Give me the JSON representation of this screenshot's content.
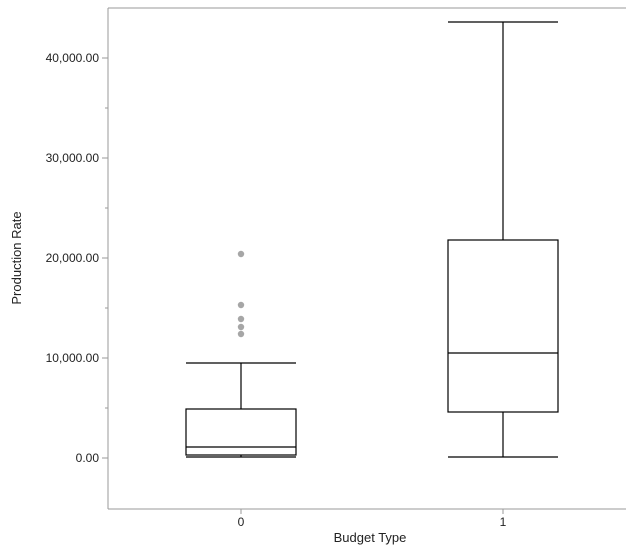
{
  "chart_data": {
    "type": "boxplot",
    "title": "",
    "xlabel": "Budget Type",
    "ylabel": "Production Rate",
    "ylim": [
      -5000,
      45000
    ],
    "yticks": [
      0,
      10000,
      20000,
      30000,
      40000
    ],
    "ytick_labels": [
      "0.00",
      "10,000.00",
      "20,000.00",
      "30,000.00",
      "40,000.00"
    ],
    "grid": false,
    "categories": [
      "0",
      "1"
    ],
    "boxes": [
      {
        "category": "0",
        "whisker_low": 100,
        "q1": 300,
        "median": 1100,
        "q3": 4900,
        "whisker_high": 9500,
        "outliers": [
          12400,
          13100,
          13900,
          15300,
          20400
        ]
      },
      {
        "category": "1",
        "whisker_low": 100,
        "q1": 4600,
        "median": 10500,
        "q3": 21800,
        "whisker_high": 43600,
        "outliers": []
      }
    ],
    "colors": {
      "box": "#000000",
      "outlier": "#a6a6a6",
      "axis": "#9a9a9a"
    }
  }
}
